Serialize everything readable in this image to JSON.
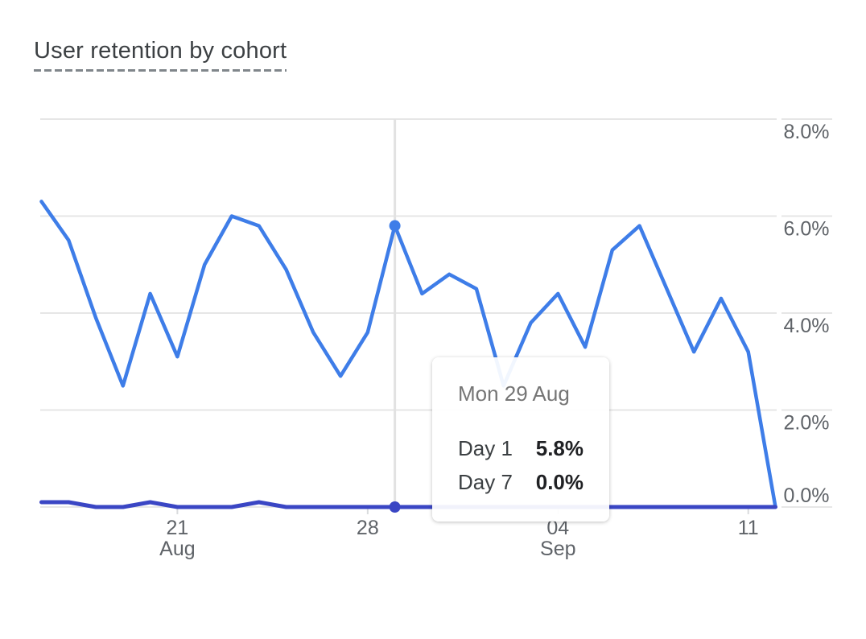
{
  "card": {
    "title": "User retention by cohort"
  },
  "chart_data": {
    "type": "line",
    "title": "User retention by cohort",
    "x": [
      "Aug 16",
      "Aug 17",
      "Aug 18",
      "Aug 19",
      "Aug 20",
      "Aug 21",
      "Aug 22",
      "Aug 23",
      "Aug 24",
      "Aug 25",
      "Aug 26",
      "Aug 27",
      "Aug 28",
      "Aug 29",
      "Aug 30",
      "Aug 31",
      "Sep 1",
      "Sep 2",
      "Sep 3",
      "Sep 4",
      "Sep 5",
      "Sep 6",
      "Sep 7",
      "Sep 8",
      "Sep 9",
      "Sep 10",
      "Sep 11",
      "Sep 12"
    ],
    "ylim": [
      0,
      8
    ],
    "y_ticks": [
      "0.0%",
      "2.0%",
      "4.0%",
      "6.0%",
      "8.0%"
    ],
    "x_ticks": [
      {
        "index": 5,
        "day": "21",
        "month": "Aug"
      },
      {
        "index": 12,
        "day": "28"
      },
      {
        "index": 19,
        "day": "04",
        "month": "Sep"
      },
      {
        "index": 26,
        "day": "11"
      }
    ],
    "grid": true,
    "legend": "none",
    "grid_color": "#e6e6e6",
    "hover_line_color": "#e2e2e2",
    "tick_color": "#d9dbdd",
    "axis_text_color": "#5f6368",
    "series": [
      {
        "name": "Day 1",
        "color": "#3e7de8",
        "values": [
          6.3,
          5.5,
          3.9,
          2.5,
          4.4,
          3.1,
          5.0,
          6.0,
          5.8,
          4.9,
          3.6,
          2.7,
          3.6,
          5.8,
          4.4,
          4.8,
          4.5,
          2.5,
          3.8,
          4.4,
          3.3,
          5.3,
          5.8,
          4.5,
          3.2,
          4.3,
          3.2,
          0.0
        ]
      },
      {
        "name": "Day 7",
        "color": "#3a46c4",
        "values": [
          0.1,
          0.1,
          0.0,
          0.0,
          0.1,
          0.0,
          0.0,
          0.0,
          0.1,
          0.0,
          0.0,
          0.0,
          0.0,
          0.0,
          0.0,
          0.0,
          0.0,
          0.0,
          0.0,
          0.0,
          0.0,
          0.0,
          0.0,
          0.0,
          0.0,
          0.0,
          0.0,
          0.0
        ]
      }
    ],
    "hover": {
      "index": 13,
      "date": "Mon 29 Aug",
      "rows": [
        {
          "label": "Day 1",
          "value": "5.8%"
        },
        {
          "label": "Day 7",
          "value": "0.0%"
        }
      ]
    }
  }
}
